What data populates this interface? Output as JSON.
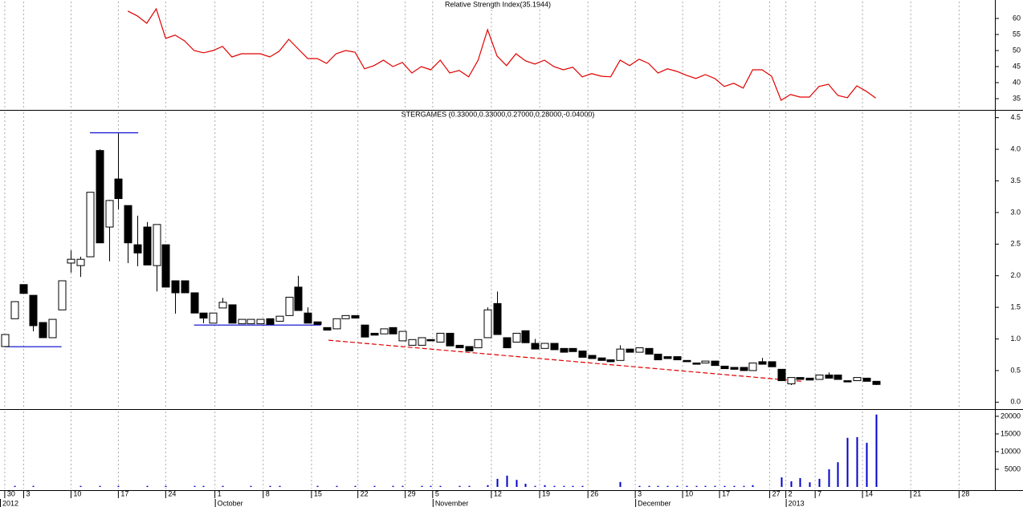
{
  "chart_data": [
    {
      "type": "line",
      "title": "Relative Strength Index(35.1944)",
      "x": [
        0,
        1,
        2,
        3,
        4,
        5,
        6,
        7,
        8,
        9,
        10,
        11,
        12,
        13,
        14,
        15,
        16,
        17,
        18,
        19,
        20,
        21,
        22,
        23,
        24,
        25,
        26,
        27,
        28,
        29,
        30,
        31,
        32,
        33,
        34,
        35,
        36,
        37,
        38,
        39,
        40,
        41,
        42,
        43,
        44,
        45,
        46,
        47,
        48,
        49,
        50,
        51,
        52,
        53,
        54,
        55,
        56,
        57,
        58,
        59,
        60,
        61,
        62,
        63,
        64,
        65,
        66,
        67,
        68,
        69,
        70,
        71,
        72,
        73,
        74,
        75,
        76,
        77,
        78,
        79,
        80,
        81,
        82,
        83,
        84,
        85,
        86,
        87,
        88,
        89,
        90,
        91,
        92
      ],
      "values": [
        null,
        null,
        null,
        null,
        null,
        null,
        null,
        null,
        null,
        null,
        null,
        null,
        null,
        62.3,
        60.8,
        58.5,
        63.0,
        53.8,
        54.8,
        53.0,
        50,
        49.3,
        50,
        51.3,
        48,
        49,
        49,
        49,
        48,
        49.8,
        53.5,
        50.5,
        47.5,
        47.5,
        46,
        49,
        50,
        49.5,
        44.3,
        45.3,
        47,
        45,
        46.3,
        43,
        45,
        44,
        47,
        43,
        43.8,
        41.8,
        47,
        56.5,
        48.3,
        45.3,
        49,
        46.8,
        45.8,
        47,
        45,
        44,
        44.8,
        41.8,
        42.8,
        42,
        41.8,
        47,
        45.3,
        47.3,
        46,
        43,
        44.3,
        43.5,
        42.3,
        41.3,
        42.5,
        41.3,
        38.8,
        39.8,
        38.3,
        44,
        44,
        42,
        34.5,
        36.3,
        35.5,
        35.5,
        38.8,
        39.5,
        36,
        35.3,
        39,
        37.3,
        35.2
      ],
      "color": "#e00000",
      "xlim": [
        -0.5,
        104.5
      ],
      "ylim": [
        31.5,
        65.75
      ],
      "yticks": [
        35,
        40,
        45,
        50,
        55,
        60
      ]
    },
    {
      "type": "candlestick",
      "title": "STERGAMES (0.33000,0.33000,0.27000,0.28000,-0.04000)",
      "x": [
        0,
        1,
        2,
        3,
        4,
        5,
        6,
        7,
        8,
        9,
        10,
        11,
        12,
        13,
        14,
        15,
        16,
        17,
        18,
        19,
        20,
        21,
        22,
        23,
        24,
        25,
        26,
        27,
        28,
        29,
        30,
        31,
        32,
        33,
        34,
        35,
        36,
        37,
        38,
        39,
        40,
        41,
        42,
        43,
        44,
        45,
        46,
        47,
        48,
        49,
        50,
        51,
        52,
        53,
        54,
        55,
        56,
        57,
        58,
        59,
        60,
        61,
        62,
        63,
        64,
        65,
        66,
        67,
        68,
        69,
        70,
        71,
        72,
        73,
        74,
        75,
        76,
        77,
        78,
        79,
        80,
        81,
        82,
        83,
        84,
        85,
        86,
        87,
        88,
        89,
        90,
        91,
        92
      ],
      "open": [
        0.88,
        1.32,
        1.86,
        1.69,
        1.26,
        1.02,
        1.46,
        2.2,
        2.16,
        2.3,
        3.98,
        2.77,
        3.53,
        3.11,
        2.49,
        2.77,
        2.16,
        2.49,
        1.92,
        1.92,
        1.73,
        1.41,
        1.25,
        1.49,
        1.54,
        1.24,
        1.24,
        1.24,
        1.32,
        1.28,
        1.37,
        1.82,
        1.41,
        1.27,
        1.18,
        1.16,
        1.32,
        1.37,
        1.22,
        1.09,
        1.08,
        1.18,
        0.97,
        0.9,
        0.9,
        0.99,
        0.95,
        1.09,
        0.9,
        0.88,
        0.86,
        1.02,
        1.56,
        1.02,
        0.95,
        1.13,
        0.93,
        0.85,
        0.93,
        0.85,
        0.85,
        0.81,
        0.74,
        0.7,
        0.67,
        0.66,
        0.84,
        0.79,
        0.85,
        0.76,
        0.72,
        0.72,
        0.66,
        0.62,
        0.62,
        0.65,
        0.57,
        0.55,
        0.55,
        0.5,
        0.64,
        0.64,
        0.52,
        0.29,
        0.39,
        0.38,
        0.36,
        0.43,
        0.43,
        0.34,
        0.34,
        0.38,
        0.33
      ],
      "high": [
        1.07,
        1.59,
        1.86,
        1.69,
        1.26,
        1.31,
        1.92,
        2.4,
        2.3,
        3.32,
        4.0,
        3.2,
        4.25,
        3.11,
        2.95,
        2.85,
        2.81,
        2.49,
        1.92,
        1.92,
        1.73,
        1.41,
        1.41,
        1.65,
        1.54,
        1.31,
        1.31,
        1.31,
        1.32,
        1.36,
        1.66,
        2.0,
        1.5,
        1.27,
        1.18,
        1.32,
        1.37,
        1.37,
        1.22,
        1.09,
        1.16,
        1.18,
        1.12,
        0.99,
        1.02,
        0.99,
        1.09,
        1.09,
        0.9,
        0.88,
        0.99,
        1.5,
        1.75,
        1.02,
        1.09,
        1.13,
        1.0,
        0.93,
        0.93,
        0.85,
        0.85,
        0.81,
        0.74,
        0.7,
        0.67,
        0.9,
        0.84,
        0.86,
        0.85,
        0.76,
        0.72,
        0.72,
        0.66,
        0.62,
        0.65,
        0.65,
        0.57,
        0.55,
        0.55,
        0.62,
        0.7,
        0.64,
        0.52,
        0.39,
        0.39,
        0.38,
        0.43,
        0.47,
        0.43,
        0.34,
        0.39,
        0.38,
        0.33
      ],
      "low": [
        0.88,
        1.32,
        1.72,
        1.12,
        1.02,
        1.02,
        1.46,
        2.05,
        1.98,
        2.3,
        2.52,
        2.23,
        3.05,
        2.2,
        2.15,
        2.17,
        1.75,
        1.82,
        1.4,
        1.73,
        1.41,
        1.25,
        1.25,
        1.49,
        1.25,
        1.24,
        1.24,
        1.24,
        1.23,
        1.28,
        1.37,
        1.45,
        1.25,
        1.23,
        1.14,
        1.16,
        1.32,
        1.33,
        1.03,
        1.06,
        1.08,
        1.08,
        0.97,
        0.9,
        0.9,
        0.97,
        0.95,
        0.89,
        0.86,
        0.81,
        0.86,
        1.02,
        1.07,
        0.86,
        0.95,
        0.94,
        0.84,
        0.85,
        0.83,
        0.79,
        0.8,
        0.71,
        0.69,
        0.66,
        0.64,
        0.66,
        0.79,
        0.79,
        0.76,
        0.67,
        0.69,
        0.67,
        0.64,
        0.6,
        0.62,
        0.58,
        0.53,
        0.52,
        0.5,
        0.5,
        0.6,
        0.56,
        0.34,
        0.27,
        0.36,
        0.35,
        0.36,
        0.38,
        0.36,
        0.32,
        0.34,
        0.33,
        0.27
      ],
      "close": [
        1.07,
        1.59,
        1.72,
        1.21,
        1.02,
        1.31,
        1.92,
        2.26,
        2.26,
        3.32,
        2.52,
        3.19,
        3.22,
        2.52,
        2.36,
        2.17,
        2.81,
        1.82,
        1.73,
        1.73,
        1.41,
        1.33,
        1.41,
        1.58,
        1.25,
        1.31,
        1.31,
        1.31,
        1.23,
        1.36,
        1.66,
        1.45,
        1.25,
        1.23,
        1.14,
        1.32,
        1.37,
        1.33,
        1.03,
        1.06,
        1.16,
        1.08,
        1.12,
        0.99,
        1.02,
        0.97,
        1.09,
        0.89,
        0.86,
        0.81,
        0.99,
        1.46,
        1.07,
        0.86,
        1.09,
        0.94,
        0.84,
        0.93,
        0.83,
        0.79,
        0.8,
        0.71,
        0.69,
        0.66,
        0.64,
        0.84,
        0.79,
        0.86,
        0.76,
        0.67,
        0.69,
        0.67,
        0.64,
        0.6,
        0.65,
        0.58,
        0.53,
        0.52,
        0.5,
        0.62,
        0.6,
        0.56,
        0.34,
        0.39,
        0.36,
        0.35,
        0.43,
        0.38,
        0.36,
        0.32,
        0.39,
        0.33,
        0.28
      ],
      "up_color": "#ffffff",
      "down_color": "#000000",
      "trendlines": [
        {
          "x": [
            0,
            6
          ],
          "y": [
            0.877,
            0.877
          ],
          "color": "#0000cc",
          "dashed": false
        },
        {
          "x": [
            9,
            14.1
          ],
          "y": [
            4.26,
            4.26
          ],
          "color": "#0000cc",
          "dashed": false
        },
        {
          "x": [
            20,
            33.4
          ],
          "y": [
            1.22,
            1.22
          ],
          "color": "#0000cc",
          "dashed": false
        },
        {
          "x": [
            34.2,
            84.2
          ],
          "y": [
            0.98,
            0.33
          ],
          "color": "#e00000",
          "dashed": true
        }
      ],
      "xlim": [
        -0.5,
        104.5
      ],
      "ylim": [
        -0.11,
        4.61
      ],
      "yticks": [
        {
          "value": 0,
          "label": "0.0"
        },
        0.5,
        {
          "value": 1,
          "label": "1.0"
        },
        1.5,
        {
          "value": 2,
          "label": "2.0"
        },
        2.5,
        {
          "value": 3,
          "label": "3.0"
        },
        3.5,
        {
          "value": 4,
          "label": "4.0"
        },
        4.5
      ]
    },
    {
      "type": "bar",
      "x": [
        0,
        1,
        2,
        3,
        4,
        5,
        6,
        7,
        8,
        9,
        10,
        11,
        12,
        13,
        14,
        15,
        16,
        17,
        18,
        19,
        20,
        21,
        22,
        23,
        24,
        25,
        26,
        27,
        28,
        29,
        30,
        31,
        32,
        33,
        34,
        35,
        36,
        37,
        38,
        39,
        40,
        41,
        42,
        43,
        44,
        45,
        46,
        47,
        48,
        49,
        50,
        51,
        52,
        53,
        54,
        55,
        56,
        57,
        58,
        59,
        60,
        61,
        62,
        63,
        64,
        65,
        66,
        67,
        68,
        69,
        70,
        71,
        72,
        73,
        74,
        75,
        76,
        77,
        78,
        79,
        80,
        81,
        82,
        83,
        84,
        85,
        86,
        87,
        88,
        89,
        90,
        91,
        92
      ],
      "values": [
        0,
        300,
        0,
        300,
        0,
        0,
        0,
        0,
        300,
        0,
        300,
        0,
        300,
        0,
        0,
        300,
        0,
        300,
        0,
        0,
        300,
        300,
        0,
        300,
        0,
        0,
        300,
        0,
        300,
        300,
        0,
        0,
        0,
        300,
        0,
        300,
        0,
        300,
        0,
        300,
        0,
        300,
        300,
        0,
        300,
        300,
        300,
        0,
        300,
        300,
        0,
        500,
        2300,
        3200,
        2000,
        900,
        300,
        500,
        300,
        300,
        300,
        300,
        0,
        0,
        0,
        1400,
        0,
        300,
        300,
        300,
        300,
        300,
        300,
        300,
        300,
        300,
        300,
        300,
        300,
        500,
        0,
        0,
        2700,
        1600,
        2500,
        1300,
        2300,
        5000,
        7000,
        13900,
        14100,
        12500,
        20500
      ],
      "color": "#0000cc",
      "xlim": [
        -0.5,
        104.5
      ],
      "ylim": [
        -680,
        21800
      ],
      "yticks": [
        5000,
        10000,
        15000,
        20000
      ],
      "xticks": [
        {
          "value": 0,
          "label": "30"
        },
        {
          "value": 2,
          "label": "3"
        },
        {
          "value": 7,
          "label": "10"
        },
        {
          "value": 12,
          "label": "17"
        },
        {
          "value": 17,
          "label": "24"
        },
        {
          "value": 22.2,
          "label": "1"
        },
        {
          "value": 27.3,
          "label": "8"
        },
        {
          "value": 32.4,
          "label": "15"
        },
        {
          "value": 37.3,
          "label": "22"
        },
        {
          "value": 42.3,
          "label": "29"
        },
        {
          "value": 45.2,
          "label": "5"
        },
        {
          "value": 51.4,
          "label": "12"
        },
        {
          "value": 56.5,
          "label": "19"
        },
        {
          "value": 61.6,
          "label": "26"
        },
        {
          "value": 66.6,
          "label": "3"
        },
        {
          "value": 71.6,
          "label": "10"
        },
        {
          "value": 75.5,
          "label": "17"
        },
        {
          "value": 80.8,
          "label": "27"
        },
        {
          "value": 82.5,
          "label": "2"
        },
        {
          "value": 85.6,
          "label": "7"
        },
        {
          "value": 90.6,
          "label": "14"
        },
        {
          "value": 95.7,
          "label": "21"
        },
        {
          "value": 100.8,
          "label": "28"
        }
      ],
      "month_ticks": [
        {
          "value": -0.5,
          "label": "2012"
        },
        {
          "value": 22.2,
          "label": "October"
        },
        {
          "value": 45.2,
          "label": "November"
        },
        {
          "value": 66.6,
          "label": "December"
        },
        {
          "value": 82.5,
          "label": "2013"
        }
      ]
    }
  ]
}
